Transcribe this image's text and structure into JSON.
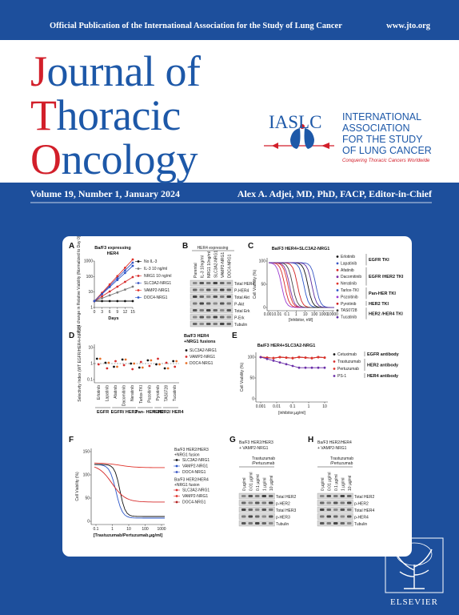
{
  "header": {
    "publication": "Official Publication of the International Association for the Study of Lung Cancer",
    "website": "www.jto.org"
  },
  "title": {
    "lines": [
      "Journal of",
      "Thoracic",
      "Oncology"
    ]
  },
  "society": {
    "acronym": "IASLC",
    "name_lines": [
      "INTERNATIONAL",
      "ASSOCIATION",
      "FOR THE STUDY",
      "OF LUNG CANCER"
    ],
    "tagline": "Conquering Thoracic Cancers Worldwide"
  },
  "issue": {
    "volume": "Volume 19, Number 1, January 2024",
    "editor": "Alex A. Adjei, MD, PhD, FACP, Editor-in-Chief"
  },
  "figure": {
    "a": {
      "label": "A",
      "title_lines": [
        "Ba/F3 expressing",
        "HER4"
      ],
      "y_label": "Fold change in Relative Viability (Normalized to Day 0)",
      "x_label": "Days",
      "xticks": [
        "0",
        "3",
        "6",
        "9",
        "12",
        "15"
      ],
      "yticks": [
        "1",
        "10",
        "100",
        "1000"
      ],
      "legend": [
        "No IL-3",
        "IL-3 10 ng/ml",
        "NRG1 10 ng/ml",
        "SLC3A2-NRG1",
        "VAMP2-NRG1",
        "DOC4-NRG1"
      ]
    },
    "b": {
      "label": "B",
      "title": "HER4 expressing",
      "lanes": [
        "Parental",
        "IL-3 10ng/ml",
        "NRG1 10ng/ml",
        "SLC3A2-NRG1",
        "VAMP2-NRG1",
        "DOC4-NRG1"
      ],
      "rows": [
        "Total HER4",
        "P-HER4",
        "Total Akt",
        "P-Akt",
        "Total Erk",
        "P-Erk",
        "Tubulin"
      ]
    },
    "c": {
      "label": "C",
      "title": "Ba/F3 HER4+SLC3A2-NRG1",
      "y_label": "Cell Viability (%)",
      "x_label": "[Inhibitor, nM]",
      "xticks": [
        "0.001",
        "0.01",
        "0.1",
        "1",
        "10",
        "100",
        "1000",
        "10000"
      ],
      "yticks": [
        "0",
        "50",
        "100"
      ],
      "legend": [
        "Erlotinib",
        "Lapatinib",
        "Afatinib",
        "Dacomitinib",
        "Neratinib",
        "Tarlox-TKI",
        "Pozoitinib",
        "Pyrotinib",
        "TAS0728",
        "Tucatinib"
      ],
      "groups": [
        "EGFR TKI",
        "EGFR /HER2 TKI",
        "Pan-HER TKI",
        "HER2 TKI",
        "HER2 /HER4 TKI"
      ]
    },
    "d": {
      "label": "D",
      "title_lines": [
        "Ba/F3 HER4",
        "+NRG1 fusions"
      ],
      "y_label": "Selectivity Index (WT EGFR/HER4+NRG1)",
      "yticks": [
        "0.1",
        "1",
        "10"
      ],
      "legend": [
        "SLC3A2-NRG1",
        "VAMP2-NRG1",
        "DOC4-NRG1"
      ],
      "drugs": [
        "Erlotinib",
        "Lapatinib",
        "Afatinib",
        "Dacomitinib",
        "Neratinib",
        "Tarlox-TKI",
        "Pozoitinib",
        "Pyrotinib",
        "TAS0728",
        "Tucatinib"
      ],
      "groups": [
        "EGFR",
        "EGFR/ HER2",
        "Pan- HER",
        "HER2",
        "HER2/ HER4"
      ]
    },
    "e": {
      "label": "E",
      "title": "Ba/F3 HER4+SLC3A2-NRG1",
      "y_label": "Cell Viability (%)",
      "x_label": "[inhibitor,µg/ml]",
      "xticks": [
        "0.001",
        "0.01",
        "0.1",
        "1",
        "10"
      ],
      "yticks": [
        "0",
        "50",
        "100"
      ],
      "legend": [
        "Cetuximab",
        "Trastuzumab",
        "Pertuzumab",
        "PS-1"
      ],
      "groups": [
        "EGFR antibody",
        "HER2 antibody",
        "HER4 antibody"
      ]
    },
    "f": {
      "label": "F",
      "y_label": "Cell Viability (%)",
      "x_label": "[Trastuzumab/Pertuzumab,µg/ml]",
      "xticks": [
        "0.1",
        "1",
        "10",
        "100",
        "1000"
      ],
      "yticks": [
        "0",
        "50",
        "100",
        "150"
      ],
      "legend_groups": [
        {
          "title_lines": [
            "Ba/F3 HER2/HER3",
            "+NRG1 fusion"
          ],
          "items": [
            "SLC3A2-NRG1",
            "VAMP2-NRG1",
            "DOC4-NRG1"
          ]
        },
        {
          "title_lines": [
            "Ba/F3 HER2/HER4",
            "+NRG1 fusion"
          ],
          "items": [
            "SLC3A2-NRG1",
            "VAMP2-NRG1",
            "DOC4-NRG1"
          ]
        }
      ]
    },
    "g": {
      "label": "G",
      "title_lines": [
        "Ba/F3 HER2/HER3",
        "+ VAMP2-NRG1"
      ],
      "treatment_lines": [
        "Trastuzumab",
        "/Pertuzumab"
      ],
      "lanes": [
        "0 µg/ml",
        "0.01 µg/ml",
        "0.1 µg/ml",
        "1 µg/ml",
        "10 µg/ml"
      ],
      "rows": [
        "Total HER2",
        "p-HER2",
        "Total HER3",
        "p-HER3",
        "Tubulin"
      ]
    },
    "h": {
      "label": "H",
      "title_lines": [
        "Ba/F3 HER2/HER4",
        "+ VAMP2-NRG1"
      ],
      "treatment_lines": [
        "Trastuzumab",
        "/Pertuzumab"
      ],
      "lanes": [
        "0 µg/ml",
        "0.01 µg/ml",
        "0.1 µg/ml",
        "1 µg/ml",
        "10 µg/ml"
      ],
      "rows": [
        "Total HER2",
        "p-HER2",
        "Total HER4",
        "p-HER4",
        "Tubulin"
      ]
    }
  },
  "publisher": "ELSEVIER"
}
